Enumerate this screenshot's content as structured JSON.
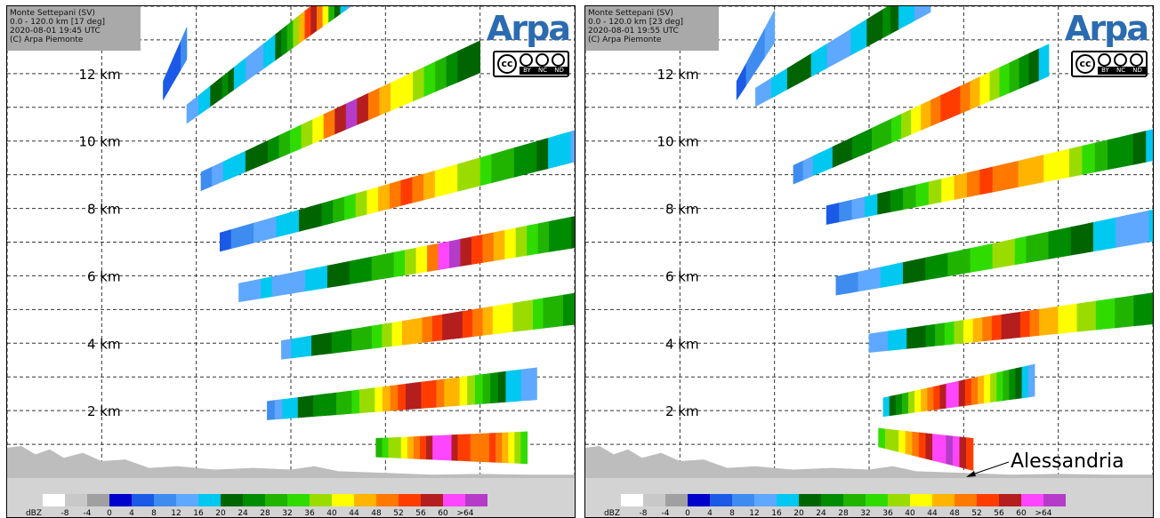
{
  "panels": [
    {
      "info": {
        "station": "Monte Settepani (SV)",
        "range": "0.0 - 120.0 km [17 deg]",
        "datetime": "2020-08-01 19:45 UTC",
        "copyright": "(C) Arpa Piemonte"
      },
      "annotation": "",
      "chart_data": {
        "type": "heatmap",
        "x_units": "km",
        "xlim": [
          0,
          120
        ],
        "ylim": [
          0,
          14
        ],
        "y_ticks": [
          2,
          4,
          6,
          8,
          10,
          12
        ],
        "y_tick_labels": [
          "2 km",
          "4 km",
          "6 km",
          "8 km",
          "10 km",
          "12 km"
        ],
        "grid": true,
        "elevation_scans": [
          {
            "x_range": [
              78,
              110
            ],
            "z_start": 0.9,
            "z_end": 0.9,
            "dbz": [
              30,
              34,
              36,
              38,
              42,
              46,
              48,
              52,
              56,
              60,
              62,
              60,
              56,
              54,
              52,
              50,
              50,
              48,
              52,
              48,
              44,
              40,
              36,
              32
            ]
          },
          {
            "x_range": [
              55,
              112
            ],
            "z_start": 2.0,
            "z_end": 2.8,
            "dbz": [
              8,
              12,
              16,
              18,
              20,
              22,
              24,
              26,
              24,
              28,
              30,
              34,
              36,
              38,
              40,
              44,
              48,
              52,
              56,
              58,
              54,
              52,
              50,
              46,
              44,
              40,
              36,
              32,
              28,
              24,
              20,
              18,
              16,
              14,
              12
            ]
          },
          {
            "x_range": [
              58,
              124
            ],
            "z_start": 3.8,
            "z_end": 5.1,
            "dbz": [
              14,
              16,
              18,
              20,
              22,
              24,
              26,
              28,
              30,
              32,
              36,
              40,
              44,
              46,
              48,
              52,
              56,
              58,
              54,
              50,
              46,
              42,
              40,
              38,
              36,
              32,
              30,
              28,
              26,
              24,
              22
            ]
          },
          {
            "x_range": [
              49,
              124
            ],
            "z_start": 5.5,
            "z_end": 7.4,
            "dbz": [
              12,
              14,
              16,
              14,
              12,
              14,
              16,
              18,
              20,
              22,
              24,
              26,
              28,
              30,
              32,
              36,
              40,
              48,
              60,
              64,
              58,
              52,
              48,
              44,
              40,
              36,
              32,
              28,
              26,
              24,
              22,
              24
            ]
          },
          {
            "x_range": [
              45,
              124
            ],
            "z_start": 7.0,
            "z_end": 10.0,
            "dbz": [
              4,
              8,
              10,
              12,
              14,
              16,
              18,
              20,
              22,
              26,
              30,
              34,
              38,
              42,
              46,
              50,
              54,
              48,
              44,
              42,
              40,
              38,
              36,
              34,
              30,
              28,
              26,
              24,
              20,
              18,
              16,
              14,
              16
            ]
          },
          {
            "x_range": [
              41,
              100
            ],
            "z_start": 8.8,
            "z_end": 12.5,
            "dbz": [
              10,
              14,
              16,
              18,
              20,
              22,
              24,
              28,
              32,
              36,
              42,
              50,
              58,
              64,
              56,
              48,
              44,
              42,
              40,
              36,
              32,
              28,
              24,
              22,
              20
            ]
          },
          {
            "x_range": [
              38,
              73
            ],
            "z_start": 10.8,
            "z_end": 14.5,
            "dbz": [
              12,
              14,
              16,
              18,
              20,
              22,
              24,
              22,
              18,
              16,
              14,
              12,
              14,
              16,
              18,
              20,
              24,
              30,
              36,
              44,
              54,
              58,
              50,
              40,
              30,
              22,
              16,
              12
            ]
          },
          {
            "x_range": [
              33,
              38
            ],
            "z_start": 11.5,
            "z_end": 12.9,
            "dbz": [
              6,
              4,
              6,
              8
            ]
          }
        ]
      }
    },
    {
      "info": {
        "station": "Monte Settepani (SV)",
        "range": "0.0 - 120.0 km [23 deg]",
        "datetime": "2020-08-01 19:55 UTC",
        "copyright": "(C) Arpa Piemonte"
      },
      "annotation": "Alessandria",
      "chart_data": {
        "type": "heatmap",
        "x_units": "km",
        "xlim": [
          0,
          120
        ],
        "ylim": [
          0,
          14
        ],
        "y_ticks": [
          2,
          4,
          6,
          8,
          10,
          12
        ],
        "y_tick_labels": [
          "2 km",
          "4 km",
          "6 km",
          "8 km",
          "10 km",
          "12 km"
        ],
        "grid": true,
        "elevation_scans": [
          {
            "x_range": [
              62,
              82
            ],
            "z_start": 1.2,
            "z_end": 0.7,
            "dbz": [
              34,
              36,
              38,
              40,
              44,
              48,
              52,
              56,
              60,
              62,
              64,
              60,
              56,
              52
            ]
          },
          {
            "x_range": [
              63,
              95
            ],
            "z_start": 2.1,
            "z_end": 2.9,
            "dbz": [
              16,
              20,
              24,
              30,
              36,
              40,
              44,
              48,
              52,
              56,
              60,
              62,
              56,
              52,
              48,
              44,
              40,
              36,
              32,
              28,
              24,
              20,
              16,
              14
            ]
          },
          {
            "x_range": [
              60,
              124
            ],
            "z_start": 4.0,
            "z_end": 5.1,
            "dbz": [
              12,
              14,
              16,
              18,
              20,
              22,
              24,
              28,
              32,
              36,
              40,
              44,
              48,
              52,
              56,
              58,
              54,
              50,
              46,
              44,
              42,
              40,
              38,
              36,
              34,
              32,
              30,
              28,
              26,
              24,
              22,
              20
            ]
          },
          {
            "x_range": [
              53,
              124
            ],
            "z_start": 5.7,
            "z_end": 7.6,
            "dbz": [
              8,
              10,
              12,
              14,
              16,
              18,
              20,
              22,
              24,
              26,
              28,
              30,
              32,
              34,
              36,
              38,
              34,
              30,
              28,
              26,
              24,
              22,
              20,
              18,
              16,
              14,
              12,
              14,
              16,
              18
            ]
          },
          {
            "x_range": [
              51,
              124
            ],
            "z_start": 7.8,
            "z_end": 10.0,
            "dbz": [
              6,
              10,
              14,
              18,
              22,
              26,
              30,
              34,
              38,
              42,
              46,
              50,
              52,
              50,
              48,
              46,
              44,
              42,
              40,
              36,
              32,
              28,
              26,
              24,
              20,
              18,
              16
            ]
          },
          {
            "x_range": [
              44,
              98
            ],
            "z_start": 9.0,
            "z_end": 12.4,
            "dbz": [
              8,
              12,
              16,
              18,
              20,
              22,
              24,
              26,
              28,
              30,
              34,
              38,
              42,
              46,
              50,
              54,
              52,
              48,
              44,
              40,
              36,
              32,
              28,
              24,
              20,
              18
            ]
          },
          {
            "x_range": [
              36,
              73
            ],
            "z_start": 11.3,
            "z_end": 14.3,
            "dbz": [
              12,
              14,
              16,
              18,
              20,
              22,
              20,
              18,
              16,
              14,
              12,
              14,
              16,
              18,
              20,
              22,
              24,
              20,
              18,
              16,
              14,
              12
            ]
          },
          {
            "x_range": [
              32,
              40
            ],
            "z_start": 11.5,
            "z_end": 13.4,
            "dbz": [
              6,
              8,
              10,
              12
            ]
          }
        ]
      }
    }
  ],
  "legend": {
    "unit": "dBZ",
    "tick_labels": [
      "-8",
      "-4",
      "0",
      "4",
      "8",
      "12",
      "16",
      "20",
      "24",
      "28",
      "32",
      "36",
      "40",
      "44",
      "48",
      "52",
      "56",
      "60",
      ">64"
    ],
    "colors": [
      "#ffffff",
      "#c8c8c8",
      "#a0a0a0",
      "#0000cc",
      "#1a5ae6",
      "#3f8cf0",
      "#5fa8ff",
      "#00c8f0",
      "#006400",
      "#008c00",
      "#20b400",
      "#30dc00",
      "#9adc00",
      "#ffff00",
      "#ffb400",
      "#ff7800",
      "#ff3c00",
      "#b41e1e",
      "#ff46ff",
      "#b43cc8"
    ]
  },
  "logo": {
    "text": "Arpa",
    "license_items": [
      "BY",
      "NC",
      "ND"
    ],
    "cc_symbol": "cc"
  }
}
